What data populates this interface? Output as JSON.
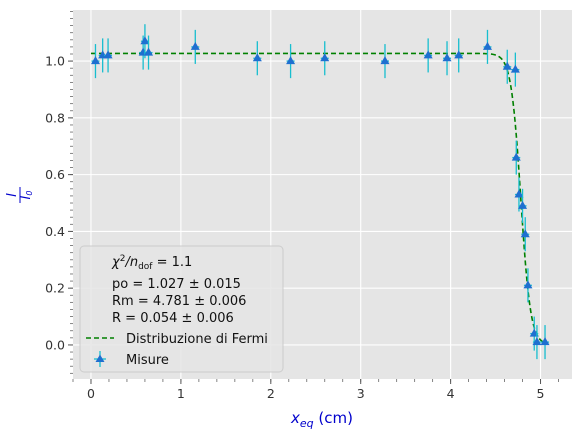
{
  "colors": {
    "plot_bg": "#e5e5e5",
    "grid": "#ffffff",
    "marker": "#1f6fd0",
    "errorbar": "#17becf",
    "fit": "#008000",
    "axis_label": "#0000cc"
  },
  "chart_data": {
    "type": "scatter",
    "xlim": [
      -0.2,
      5.35
    ],
    "ylim": [
      -0.12,
      1.18
    ],
    "xticks": [
      0,
      1,
      2,
      3,
      4,
      5
    ],
    "yticks": [
      0.0,
      0.2,
      0.4,
      0.6,
      0.8,
      1.0
    ],
    "xtick_labels": [
      "0",
      "1",
      "2",
      "3",
      "4",
      "5"
    ],
    "ytick_labels": [
      "0.0",
      "0.2",
      "0.4",
      "0.6",
      "0.8",
      "1.0"
    ],
    "xlabel": {
      "main": "x",
      "sub": "eq",
      "unit": " (cm)"
    },
    "ylabel": {
      "num": "I",
      "den": "I",
      "den_sub": "0"
    },
    "grid": true,
    "legend_placement": "bottom-left",
    "legend": {
      "stats": {
        "chi": {
          "pre": "χ",
          "sup": "2",
          "mid": "/n",
          "sub": "dof",
          "post": " = 1.1"
        },
        "po": "po = 1.027 ± 0.015",
        "rm": "Rm = 4.781 ± 0.006",
        "r": "R = 0.054 ± 0.006"
      },
      "fit_label": "Distribuzione di Fermi",
      "data_label": "Misure"
    },
    "fit": {
      "po": 1.027,
      "rm": 4.781,
      "r": 0.054
    },
    "series": [
      {
        "name": "Misure",
        "points": [
          {
            "x": 0.05,
            "y": 1.0,
            "err": 0.06
          },
          {
            "x": 0.13,
            "y": 1.02,
            "err": 0.06
          },
          {
            "x": 0.19,
            "y": 1.02,
            "err": 0.06
          },
          {
            "x": 0.58,
            "y": 1.03,
            "err": 0.06
          },
          {
            "x": 0.6,
            "y": 1.07,
            "err": 0.06
          },
          {
            "x": 0.64,
            "y": 1.03,
            "err": 0.06
          },
          {
            "x": 1.16,
            "y": 1.05,
            "err": 0.06
          },
          {
            "x": 1.85,
            "y": 1.01,
            "err": 0.06
          },
          {
            "x": 2.22,
            "y": 1.0,
            "err": 0.06
          },
          {
            "x": 2.6,
            "y": 1.01,
            "err": 0.06
          },
          {
            "x": 3.27,
            "y": 1.0,
            "err": 0.06
          },
          {
            "x": 3.75,
            "y": 1.02,
            "err": 0.06
          },
          {
            "x": 3.96,
            "y": 1.01,
            "err": 0.06
          },
          {
            "x": 4.09,
            "y": 1.02,
            "err": 0.06
          },
          {
            "x": 4.41,
            "y": 1.05,
            "err": 0.06
          },
          {
            "x": 4.63,
            "y": 0.98,
            "err": 0.06
          },
          {
            "x": 4.72,
            "y": 0.97,
            "err": 0.06
          },
          {
            "x": 4.73,
            "y": 0.66,
            "err": 0.06
          },
          {
            "x": 4.76,
            "y": 0.53,
            "err": 0.06
          },
          {
            "x": 4.8,
            "y": 0.49,
            "err": 0.06
          },
          {
            "x": 4.83,
            "y": 0.39,
            "err": 0.06
          },
          {
            "x": 4.86,
            "y": 0.21,
            "err": 0.06
          },
          {
            "x": 4.93,
            "y": 0.04,
            "err": 0.06
          },
          {
            "x": 4.96,
            "y": 0.01,
            "err": 0.06
          },
          {
            "x": 5.05,
            "y": 0.01,
            "err": 0.06
          }
        ]
      }
    ]
  }
}
